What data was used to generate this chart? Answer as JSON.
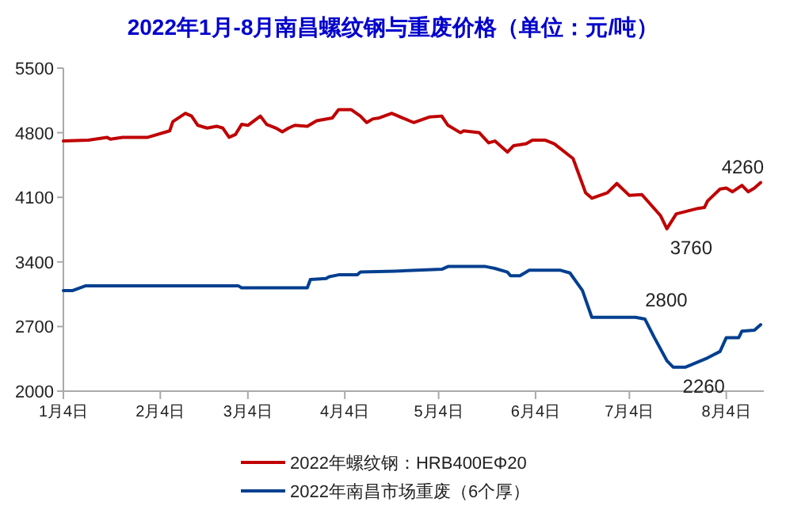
{
  "chart_data": {
    "type": "line",
    "title": "2022年1月-8月南昌螺纹钢与重废价格（单位：元/吨）",
    "xlim": [
      "2022-01-04",
      "2022-08-16"
    ],
    "xticks": [
      {
        "value": "2022-01-04",
        "label": "1月4日"
      },
      {
        "value": "2022-02-04",
        "label": "2月4日"
      },
      {
        "value": "2022-03-04",
        "label": "3月4日"
      },
      {
        "value": "2022-04-04",
        "label": "4月4日"
      },
      {
        "value": "2022-05-04",
        "label": "5月4日"
      },
      {
        "value": "2022-06-04",
        "label": "6月4日"
      },
      {
        "value": "2022-07-04",
        "label": "7月4日"
      },
      {
        "value": "2022-08-04",
        "label": "8月4日"
      }
    ],
    "ylim": [
      2000,
      5500
    ],
    "yticks": [
      2000,
      2700,
      3400,
      4100,
      4800,
      5500
    ],
    "grid": false,
    "legend": "bottom",
    "marker": "none",
    "line_style": "solid",
    "series": [
      {
        "name": "2022年螺纹钢：HRB400EΦ20",
        "color": "#c00000",
        "x": [
          "2022-01-04",
          "2022-01-12",
          "2022-01-18",
          "2022-01-19",
          "2022-01-23",
          "2022-01-31",
          "2022-02-07",
          "2022-02-08",
          "2022-02-12",
          "2022-02-14",
          "2022-02-16",
          "2022-02-19",
          "2022-02-22",
          "2022-02-24",
          "2022-02-26",
          "2022-02-28",
          "2022-03-02",
          "2022-03-04",
          "2022-03-08",
          "2022-03-10",
          "2022-03-13",
          "2022-03-15",
          "2022-03-17",
          "2022-03-19",
          "2022-03-23",
          "2022-03-26",
          "2022-03-31",
          "2022-04-02",
          "2022-04-06",
          "2022-04-09",
          "2022-04-11",
          "2022-04-13",
          "2022-04-15",
          "2022-04-19",
          "2022-04-26",
          "2022-05-01",
          "2022-05-05",
          "2022-05-07",
          "2022-05-11",
          "2022-05-12",
          "2022-05-17",
          "2022-05-20",
          "2022-05-22",
          "2022-05-26",
          "2022-05-28",
          "2022-06-01",
          "2022-06-03",
          "2022-06-07",
          "2022-06-10",
          "2022-06-16",
          "2022-06-20",
          "2022-06-22",
          "2022-06-27",
          "2022-06-30",
          "2022-07-04",
          "2022-07-08",
          "2022-07-14",
          "2022-07-16",
          "2022-07-19",
          "2022-07-26",
          "2022-07-28",
          "2022-07-29",
          "2022-08-02",
          "2022-08-04",
          "2022-08-06",
          "2022-08-09",
          "2022-08-11",
          "2022-08-13",
          "2022-08-15"
        ],
        "values": [
          4710,
          4720,
          4750,
          4730,
          4750,
          4750,
          4820,
          4920,
          5010,
          4980,
          4880,
          4850,
          4870,
          4850,
          4750,
          4780,
          4890,
          4880,
          4980,
          4890,
          4850,
          4810,
          4850,
          4880,
          4870,
          4930,
          4960,
          5050,
          5050,
          4980,
          4910,
          4950,
          4960,
          5010,
          4910,
          4970,
          4980,
          4880,
          4800,
          4820,
          4800,
          4690,
          4710,
          4590,
          4660,
          4680,
          4720,
          4720,
          4680,
          4520,
          4150,
          4090,
          4150,
          4250,
          4120,
          4130,
          3900,
          3760,
          3920,
          3980,
          3990,
          4060,
          4190,
          4200,
          4160,
          4230,
          4160,
          4200,
          4260
        ]
      },
      {
        "name": "2022年南昌市场重废（6个厚）",
        "color": "#003f8f",
        "x": [
          "2022-01-04",
          "2022-01-07",
          "2022-01-11",
          "2022-03-01",
          "2022-03-02",
          "2022-03-23",
          "2022-03-24",
          "2022-03-29",
          "2022-03-30",
          "2022-04-02",
          "2022-04-08",
          "2022-04-09",
          "2022-04-20",
          "2022-05-05",
          "2022-05-07",
          "2022-05-19",
          "2022-05-22",
          "2022-05-26",
          "2022-05-27",
          "2022-05-30",
          "2022-06-02",
          "2022-06-12",
          "2022-06-15",
          "2022-06-19",
          "2022-06-22",
          "2022-07-06",
          "2022-07-09",
          "2022-07-12",
          "2022-07-16",
          "2022-07-18",
          "2022-07-22",
          "2022-07-29",
          "2022-08-02",
          "2022-08-04",
          "2022-08-08",
          "2022-08-09",
          "2022-08-13",
          "2022-08-15"
        ],
        "values": [
          3090,
          3090,
          3140,
          3140,
          3120,
          3120,
          3210,
          3220,
          3240,
          3260,
          3260,
          3290,
          3300,
          3320,
          3350,
          3350,
          3330,
          3290,
          3250,
          3250,
          3310,
          3310,
          3280,
          3090,
          2800,
          2800,
          2780,
          2580,
          2330,
          2260,
          2260,
          2360,
          2430,
          2580,
          2580,
          2650,
          2660,
          2720
        ]
      }
    ],
    "annotations": [
      {
        "text": "4260",
        "x": "2022-08-15",
        "y": 4260
      },
      {
        "text": "3760",
        "x": "2022-07-16",
        "y": 3760
      },
      {
        "text": "2800",
        "x": "2022-07-06",
        "y": 2800
      },
      {
        "text": "2260",
        "x": "2022-07-18",
        "y": 2260
      }
    ]
  }
}
